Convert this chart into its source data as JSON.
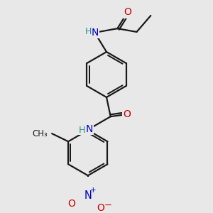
{
  "bg_color": "#e8e8e8",
  "bond_color": "#1a1a1a",
  "N_color": "#0000cc",
  "O_color": "#cc0000",
  "H_color": "#2e8b8b",
  "line_width": 1.6,
  "font_size": 9.5,
  "fig_width": 3.0,
  "fig_height": 3.0,
  "dpi": 100,
  "xlim": [
    -2.5,
    3.5
  ],
  "ylim": [
    -4.5,
    3.2
  ]
}
